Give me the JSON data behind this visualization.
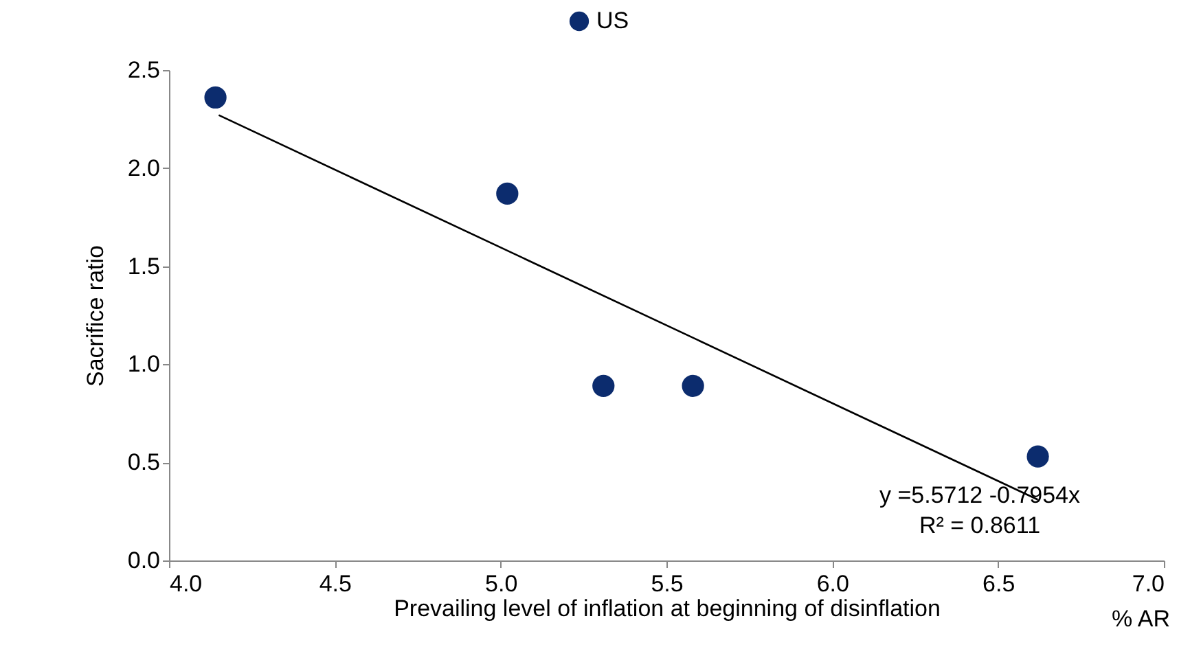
{
  "chart_data": {
    "type": "scatter",
    "xlabel": "Prevailing level of inflation at beginning of disinflation",
    "ylabel": "Sacrifice ratio",
    "xlim": [
      4.0,
      7.0
    ],
    "xticks": [
      {
        "value": 4,
        "label": "4.0"
      },
      4.5,
      {
        "value": 5,
        "label": "5.0"
      },
      5.5,
      {
        "value": 6,
        "label": "6.0"
      },
      6.5,
      {
        "value": 7,
        "label": "7.0"
      }
    ],
    "ylim": [
      0,
      2.5
    ],
    "yticks": [
      {
        "value": 0,
        "label": "0.0"
      },
      0.5,
      {
        "value": 1,
        "label": "1.0"
      },
      1.5,
      {
        "value": 2,
        "label": "2.0"
      },
      2.5
    ],
    "grid": false,
    "legend": "top",
    "series": [
      {
        "name": "US",
        "color": "#0c2c6e",
        "marker": "circle",
        "x": [
          4.14,
          5.02,
          5.31,
          5.58,
          6.62
        ],
        "values": [
          2.36,
          1.87,
          0.89,
          0.89,
          0.53
        ]
      },
      {
        "type": "line",
        "color": "#000000",
        "x": [
          4.15,
          6.62
        ],
        "values": [
          2.27,
          0.31
        ]
      }
    ],
    "annotations": [
      "y =5.5712 -0.7954x",
      "R² = 0.8611",
      "% AR"
    ]
  }
}
